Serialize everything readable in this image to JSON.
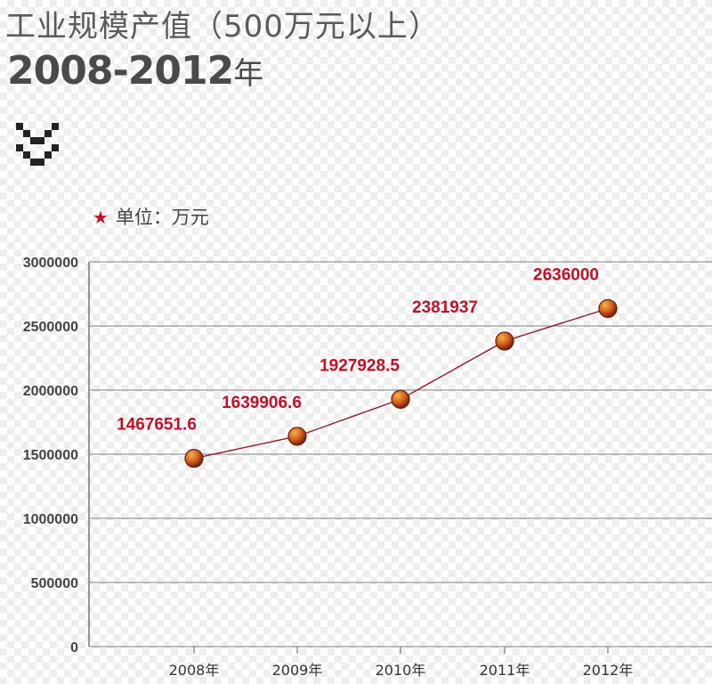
{
  "header": {
    "title_line1": "工业规模产值（500万元以上）",
    "title_line2": "2008-2012",
    "title_line2_suffix": "年"
  },
  "legend": {
    "star_icon": "★",
    "unit_label": "单位：万元"
  },
  "colors": {
    "line": "#8b1a2b",
    "label": "#c0102a",
    "grid": "#999999",
    "marker": "#c2501c"
  },
  "chart_data": {
    "type": "line",
    "categories": [
      "2008年",
      "2009年",
      "2010年",
      "2011年",
      "2012年"
    ],
    "series": [
      {
        "values": [
          1467651.6,
          1639906.6,
          1927928.5,
          2381937,
          2636000
        ]
      }
    ],
    "data_labels": [
      "1467651.6",
      "1639906.6",
      "1927928.5",
      "2381937",
      "2636000"
    ],
    "yticks": [
      0,
      500000,
      1000000,
      1500000,
      2000000,
      2500000,
      3000000
    ],
    "ytick_labels": [
      "0",
      "500000",
      "1000000",
      "1500000",
      "2000000",
      "2500000",
      "3000000"
    ],
    "ylim": [
      0,
      3000000
    ],
    "grid": true,
    "title": "",
    "xlabel": "",
    "ylabel": ""
  }
}
